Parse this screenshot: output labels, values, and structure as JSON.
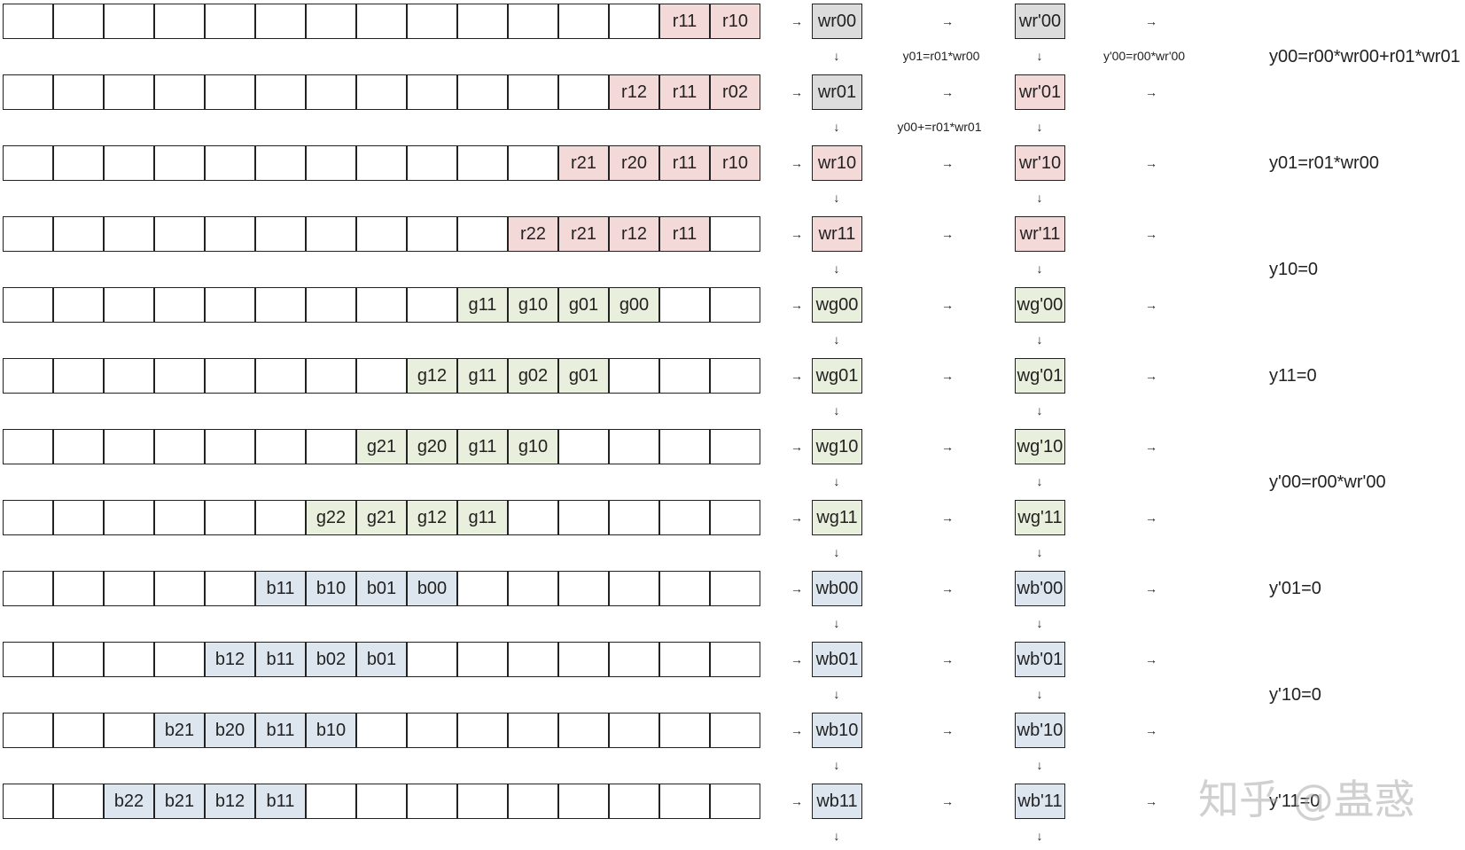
{
  "rows": [
    {
      "color": "r",
      "start": 13,
      "cells": [
        "r11",
        "r10"
      ],
      "w": "wr00",
      "w_color": "gray",
      "wp": "wr'00",
      "wp_color": "gray"
    },
    {
      "color": "r",
      "start": 12,
      "cells": [
        "r12",
        "r11",
        "r02"
      ],
      "w": "wr01",
      "w_color": "gray",
      "wp": "wr'01",
      "wp_color": "r"
    },
    {
      "color": "r",
      "start": 11,
      "cells": [
        "r21",
        "r20",
        "r11",
        "r10"
      ],
      "w": "wr10",
      "w_color": "r",
      "wp": "wr'10",
      "wp_color": "r"
    },
    {
      "color": "r",
      "start": 10,
      "cells": [
        "r22",
        "r21",
        "r12",
        "r11"
      ],
      "w": "wr11",
      "w_color": "r",
      "wp": "wr'11",
      "wp_color": "r"
    },
    {
      "color": "g",
      "start": 9,
      "cells": [
        "g11",
        "g10",
        "g01",
        "g00"
      ],
      "w": "wg00",
      "w_color": "g",
      "wp": "wg'00",
      "wp_color": "g"
    },
    {
      "color": "g",
      "start": 8,
      "cells": [
        "g12",
        "g11",
        "g02",
        "g01"
      ],
      "w": "wg01",
      "w_color": "g",
      "wp": "wg'01",
      "wp_color": "g"
    },
    {
      "color": "g",
      "start": 7,
      "cells": [
        "g21",
        "g20",
        "g11",
        "g10"
      ],
      "w": "wg10",
      "w_color": "g",
      "wp": "wg'10",
      "wp_color": "g"
    },
    {
      "color": "g",
      "start": 6,
      "cells": [
        "g22",
        "g21",
        "g12",
        "g11"
      ],
      "w": "wg11",
      "w_color": "g",
      "wp": "wg'11",
      "wp_color": "g"
    },
    {
      "color": "b",
      "start": 5,
      "cells": [
        "b11",
        "b10",
        "b01",
        "b00"
      ],
      "w": "wb00",
      "w_color": "b",
      "wp": "wb'00",
      "wp_color": "b"
    },
    {
      "color": "b",
      "start": 4,
      "cells": [
        "b12",
        "b11",
        "b02",
        "b01"
      ],
      "w": "wb01",
      "w_color": "b",
      "wp": "wb'01",
      "wp_color": "b"
    },
    {
      "color": "b",
      "start": 3,
      "cells": [
        "b21",
        "b20",
        "b11",
        "b10"
      ],
      "w": "wb10",
      "w_color": "b",
      "wp": "wb'10",
      "wp_color": "b"
    },
    {
      "color": "b",
      "start": 2,
      "cells": [
        "b22",
        "b21",
        "b12",
        "b11"
      ],
      "w": "wb11",
      "w_color": "b",
      "wp": "wb'11",
      "wp_color": "b"
    }
  ],
  "notes": {
    "n1": "y01=r01*wr00",
    "n2": "y'00=r00*wr'00",
    "n3": "y00+=r01*wr01"
  },
  "equations": [
    "y00=r00*wr00+r01*wr01",
    "y01=r01*wr00",
    "y10=0",
    "y11=0",
    "y'00=r00*wr'00",
    "y'01=0",
    "y'10=0",
    "y'11=0"
  ],
  "watermark": "知乎 @蛊惑",
  "symbols": {
    "right_arrow": "→",
    "down_arrow": "↓"
  },
  "colors": {
    "r": "#f4d9d9",
    "g": "#e8efdc",
    "b": "#dde6ef",
    "gray": "#dcdcdc"
  }
}
